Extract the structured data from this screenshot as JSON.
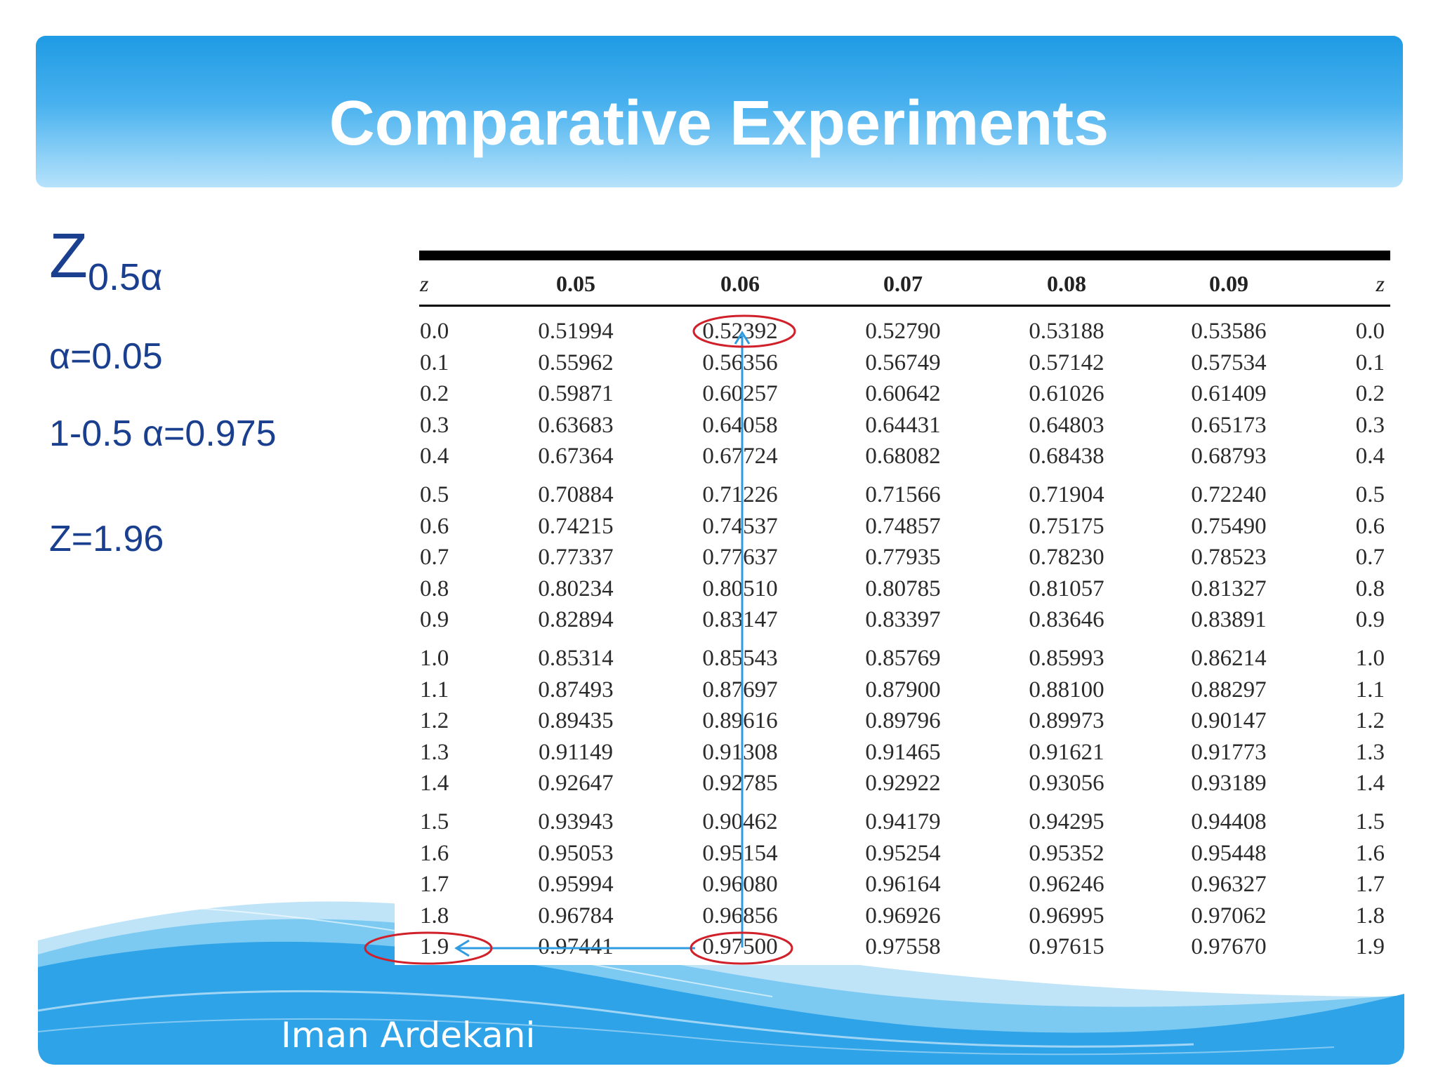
{
  "slide": {
    "title": "Comparative Experiments",
    "author": "Iman Ardekani",
    "notation": {
      "main": "Z",
      "subscript": "0.5α"
    },
    "alpha_line": "α=0.05",
    "probability_line": "1-0.5 α=0.975",
    "z_line": "Z=1.96"
  },
  "table": {
    "z_header": "z",
    "columns": [
      "0.05",
      "0.06",
      "0.07",
      "0.08",
      "0.09"
    ],
    "z_header_right": "z",
    "rows": [
      {
        "z": "0.0",
        "values": [
          "0.51994",
          "0.52392",
          "0.52790",
          "0.53188",
          "0.53586"
        ]
      },
      {
        "z": "0.1",
        "values": [
          "0.55962",
          "0.56356",
          "0.56749",
          "0.57142",
          "0.57534"
        ]
      },
      {
        "z": "0.2",
        "values": [
          "0.59871",
          "0.60257",
          "0.60642",
          "0.61026",
          "0.61409"
        ]
      },
      {
        "z": "0.3",
        "values": [
          "0.63683",
          "0.64058",
          "0.64431",
          "0.64803",
          "0.65173"
        ]
      },
      {
        "z": "0.4",
        "values": [
          "0.67364",
          "0.67724",
          "0.68082",
          "0.68438",
          "0.68793"
        ]
      },
      {
        "z": "0.5",
        "values": [
          "0.70884",
          "0.71226",
          "0.71566",
          "0.71904",
          "0.72240"
        ]
      },
      {
        "z": "0.6",
        "values": [
          "0.74215",
          "0.74537",
          "0.74857",
          "0.75175",
          "0.75490"
        ]
      },
      {
        "z": "0.7",
        "values": [
          "0.77337",
          "0.77637",
          "0.77935",
          "0.78230",
          "0.78523"
        ]
      },
      {
        "z": "0.8",
        "values": [
          "0.80234",
          "0.80510",
          "0.80785",
          "0.81057",
          "0.81327"
        ]
      },
      {
        "z": "0.9",
        "values": [
          "0.82894",
          "0.83147",
          "0.83397",
          "0.83646",
          "0.83891"
        ]
      },
      {
        "z": "1.0",
        "values": [
          "0.85314",
          "0.85543",
          "0.85769",
          "0.85993",
          "0.86214"
        ]
      },
      {
        "z": "1.1",
        "values": [
          "0.87493",
          "0.87697",
          "0.87900",
          "0.88100",
          "0.88297"
        ]
      },
      {
        "z": "1.2",
        "values": [
          "0.89435",
          "0.89616",
          "0.89796",
          "0.89973",
          "0.90147"
        ]
      },
      {
        "z": "1.3",
        "values": [
          "0.91149",
          "0.91308",
          "0.91465",
          "0.91621",
          "0.91773"
        ]
      },
      {
        "z": "1.4",
        "values": [
          "0.92647",
          "0.92785",
          "0.92922",
          "0.93056",
          "0.93189"
        ]
      },
      {
        "z": "1.5",
        "values": [
          "0.93943",
          "0.90462",
          "0.94179",
          "0.94295",
          "0.94408"
        ]
      },
      {
        "z": "1.6",
        "values": [
          "0.95053",
          "0.95154",
          "0.95254",
          "0.95352",
          "0.95448"
        ]
      },
      {
        "z": "1.7",
        "values": [
          "0.95994",
          "0.96080",
          "0.96164",
          "0.96246",
          "0.96327"
        ]
      },
      {
        "z": "1.8",
        "values": [
          "0.96784",
          "0.96856",
          "0.96926",
          "0.96995",
          "0.97062"
        ]
      },
      {
        "z": "1.9",
        "values": [
          "0.97441",
          "0.97500",
          "0.97558",
          "0.97615",
          "0.97670"
        ]
      }
    ]
  },
  "annotations": {
    "circle_color": "#d0202a",
    "arrow_color": "#2f9be0",
    "circled_cells": [
      "0.52392",
      "0.97500",
      "1.9"
    ]
  },
  "theme": {
    "header_blue": "#1f9be4",
    "text_blue": "#1b3f8f",
    "wave_blue": "#2fa3e8"
  }
}
